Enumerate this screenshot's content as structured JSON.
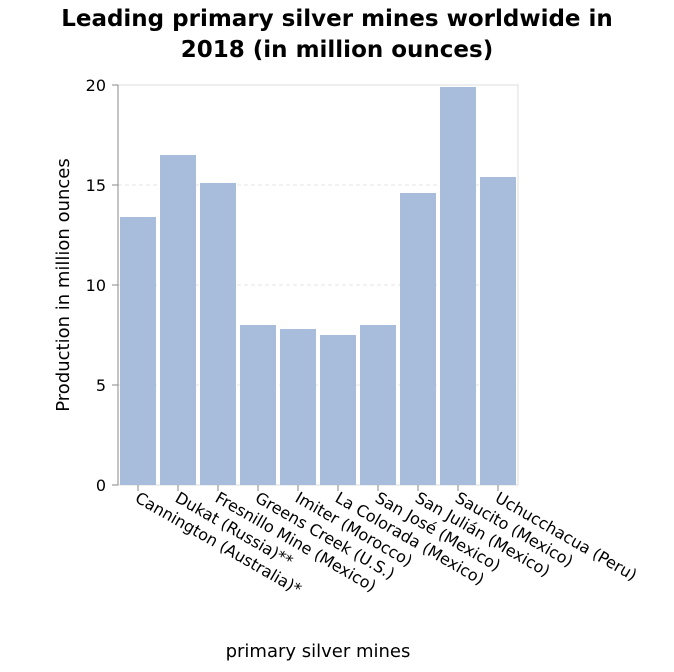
{
  "chart_data": {
    "type": "bar",
    "title_lines": [
      "Leading primary silver mines worldwide in",
      "2018 (in million ounces)"
    ],
    "xlabel": "primary silver mines",
    "ylabel": "Production in million ounces",
    "categories": [
      "Cannington (Australia)*",
      "Dukat (Russia)**",
      "Fresnillo Mine (Mexico)",
      "Greens Creek (U.S.)",
      "Imiter (Morocco)",
      "La Colorada (Mexico)",
      "San José (Mexico)",
      "San Julián (Mexico)",
      "Saucito (Mexico)",
      "Uchucchacua (Peru)"
    ],
    "values": [
      13.4,
      16.5,
      15.1,
      8.0,
      7.8,
      7.5,
      8.0,
      14.6,
      19.9,
      15.4
    ],
    "ylim": [
      0,
      20
    ],
    "yticks": [
      0,
      5,
      10,
      15,
      20
    ],
    "grid": true,
    "bar_color": "#a8bddc"
  }
}
